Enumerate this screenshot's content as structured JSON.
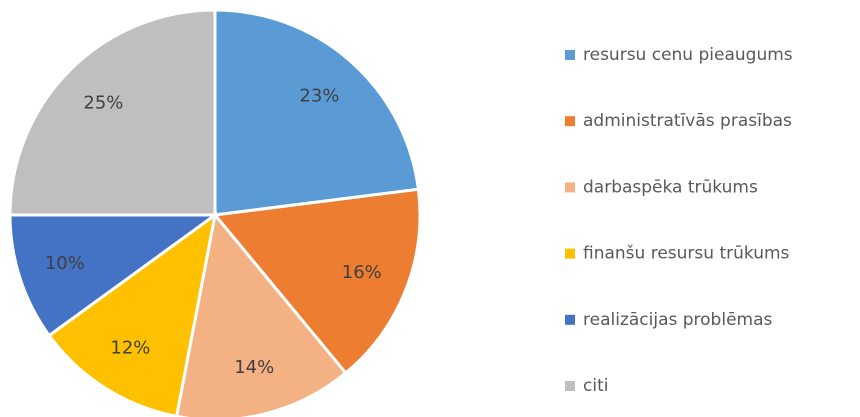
{
  "chart_data": {
    "type": "pie",
    "categories": [
      "resursu cenu pieaugums",
      "administratīvās prasības",
      "darbaspēka trūkums",
      "finanšu resursu trūkums",
      "realizācijas problēmas",
      "citi"
    ],
    "values": [
      23,
      16,
      14,
      12,
      10,
      25
    ],
    "value_labels": [
      "23%",
      "16%",
      "14%",
      "12%",
      "10%",
      "25%"
    ],
    "colors": [
      "#5b9bd5",
      "#ed7d31",
      "#f4b183",
      "#ffc000",
      "#4472c4",
      "#bfbfbf"
    ],
    "legend": "right"
  }
}
